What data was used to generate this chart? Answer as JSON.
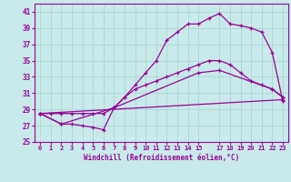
{
  "xlabel": "Windchill (Refroidissement éolien,°C)",
  "bg_color": "#c8eaea",
  "grid_color": "#b0d8d8",
  "line_color": "#990099",
  "xlim": [
    -0.5,
    23.5
  ],
  "ylim": [
    25,
    42
  ],
  "xticks": [
    0,
    1,
    2,
    3,
    4,
    5,
    6,
    7,
    8,
    9,
    10,
    11,
    12,
    13,
    14,
    15,
    17,
    18,
    19,
    20,
    21,
    22,
    23
  ],
  "yticks": [
    25,
    27,
    29,
    31,
    33,
    35,
    37,
    39,
    41
  ],
  "curve1_x": [
    0,
    1,
    2,
    3,
    4,
    5,
    6,
    7,
    8,
    9,
    10,
    11,
    12,
    13,
    14,
    15,
    16,
    17,
    18,
    19,
    20,
    21,
    22,
    23
  ],
  "curve1_y": [
    28.5,
    28.5,
    28.5,
    28.5,
    28.5,
    28.5,
    28.5,
    29.2,
    30.5,
    32.0,
    33.5,
    35.0,
    37.5,
    38.5,
    39.5,
    39.5,
    40.2,
    40.8,
    39.5,
    39.3,
    39.0,
    38.5,
    36.0,
    30.0
  ],
  "curve2_x": [
    0,
    2,
    3,
    4,
    5,
    6,
    7,
    8,
    9,
    10,
    11,
    12,
    13,
    14,
    15,
    16,
    17,
    18,
    19,
    20,
    21,
    22,
    23
  ],
  "curve2_y": [
    28.5,
    27.2,
    27.2,
    27.0,
    26.8,
    26.5,
    29.2,
    30.5,
    31.5,
    32.0,
    32.5,
    33.0,
    33.5,
    34.0,
    34.5,
    35.0,
    35.0,
    34.5,
    33.5,
    32.5,
    32.0,
    31.5,
    30.5
  ],
  "curve3_x": [
    0,
    2,
    7,
    15,
    17,
    22,
    23
  ],
  "curve3_y": [
    28.5,
    27.2,
    29.2,
    33.5,
    33.8,
    31.5,
    30.5
  ],
  "curve4_x": [
    0,
    23
  ],
  "curve4_y": [
    28.5,
    30.2
  ]
}
